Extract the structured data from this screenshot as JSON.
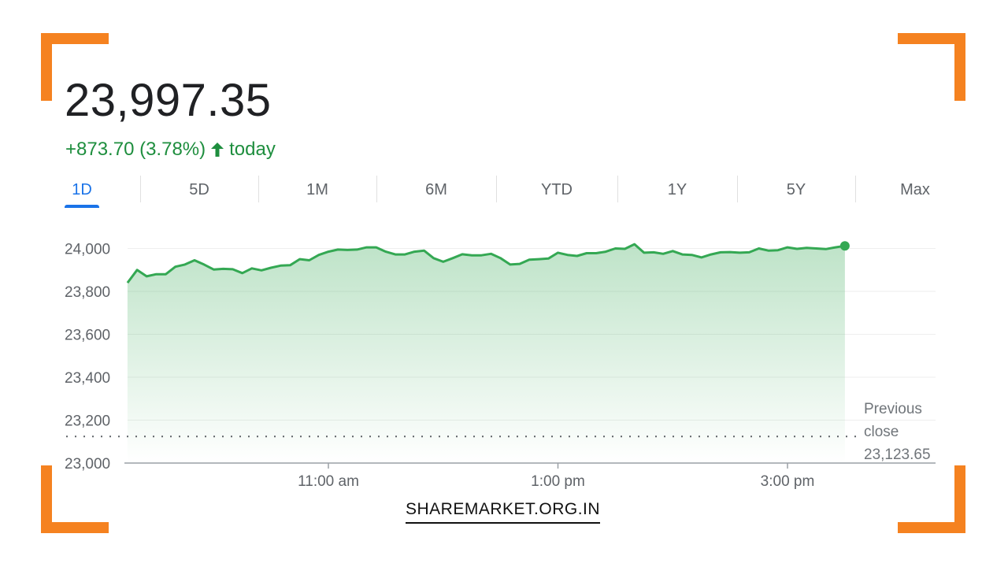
{
  "colors": {
    "accent_orange": "#f58220",
    "up_green": "#1e8e3e",
    "line_green": "#34a853",
    "tab_blue": "#1a73e8"
  },
  "price": "23,997.35",
  "change": {
    "text": "+873.70 (3.78%)",
    "suffix": "today",
    "icon": "arrow-up-icon"
  },
  "tabs": [
    {
      "label": "1D",
      "active": true
    },
    {
      "label": "5D",
      "active": false
    },
    {
      "label": "1M",
      "active": false
    },
    {
      "label": "6M",
      "active": false
    },
    {
      "label": "YTD",
      "active": false
    },
    {
      "label": "1Y",
      "active": false
    },
    {
      "label": "5Y",
      "active": false
    },
    {
      "label": "Max",
      "active": false
    }
  ],
  "chart_data": {
    "type": "area",
    "y_ticks": [
      "24,000",
      "23,800",
      "23,600",
      "23,400",
      "23,200",
      "23,000"
    ],
    "ylim": [
      23000,
      24100
    ],
    "x_ticks": [
      {
        "label": "11:00 am",
        "value": 660
      },
      {
        "label": "1:00 pm",
        "value": 780
      },
      {
        "label": "3:00 pm",
        "value": 900
      }
    ],
    "xlim_minutes": [
      555,
      945
    ],
    "grid": true,
    "previous_close": {
      "label_lines": [
        "Previous",
        "close"
      ],
      "value_text": "23,123.65",
      "value": 23123.65
    },
    "series": [
      {
        "start_minute": 555,
        "step_minutes": 5,
        "values": [
          23840,
          23900,
          23870,
          23880,
          23880,
          23915,
          23925,
          23945,
          23925,
          23902,
          23905,
          23903,
          23885,
          23907,
          23898,
          23910,
          23920,
          23922,
          23950,
          23945,
          23970,
          23985,
          23995,
          23993,
          23995,
          24005,
          24005,
          23985,
          23972,
          23972,
          23985,
          23990,
          23955,
          23938,
          23955,
          23973,
          23968,
          23968,
          23975,
          23955,
          23925,
          23928,
          23948,
          23950,
          23953,
          23980,
          23970,
          23965,
          23978,
          23978,
          23985,
          24000,
          23998,
          24020,
          23980,
          23982,
          23975,
          23988,
          23972,
          23970,
          23958,
          23972,
          23982,
          23983,
          23980,
          23982,
          24000,
          23990,
          23992,
          24005,
          23998,
          24003,
          24000,
          23997,
          24005,
          24012
        ]
      }
    ]
  },
  "brand": {
    "text": "SHAREMARKET.ORG.IN"
  }
}
